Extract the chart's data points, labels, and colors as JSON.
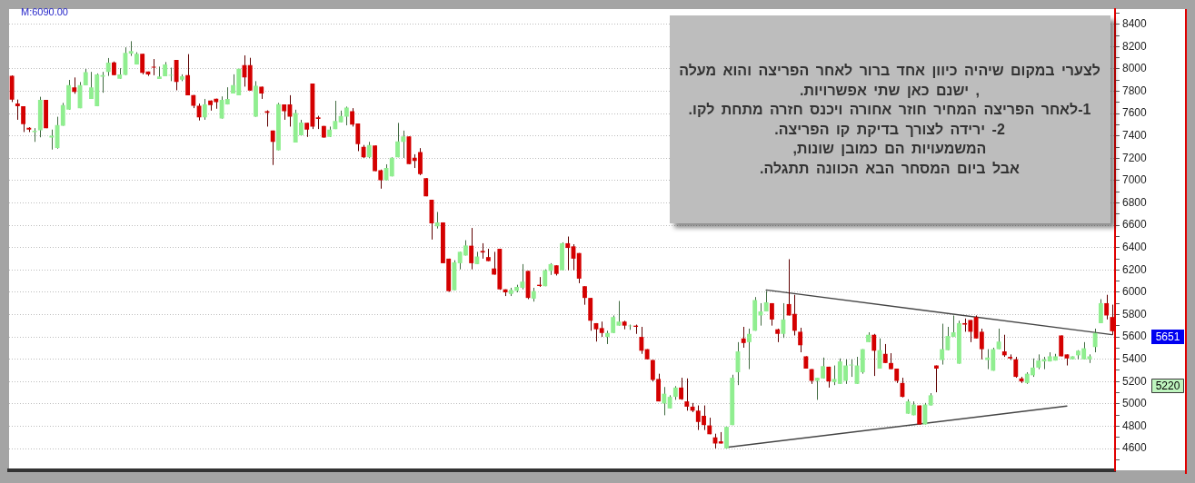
{
  "chart_data": {
    "type": "candlestick",
    "categories": [
      null,
      null,
      null,
      null,
      null,
      null,
      null,
      null,
      null,
      null,
      null,
      null,
      null,
      null,
      null,
      null,
      null,
      null,
      null,
      null,
      null,
      null,
      null,
      null,
      null,
      null,
      null,
      null,
      null,
      null,
      null,
      null,
      null,
      null,
      null,
      null,
      null,
      null,
      null,
      null,
      null,
      null,
      null,
      null,
      null,
      null,
      null,
      null,
      null,
      null,
      null,
      null,
      null,
      null,
      null,
      null,
      null,
      null,
      null,
      null,
      null,
      null,
      null,
      null,
      null,
      null,
      null,
      null,
      null,
      null,
      null,
      null,
      null,
      null,
      null,
      null,
      null,
      null,
      null,
      null,
      null,
      null,
      null,
      null,
      null,
      null,
      null,
      null,
      null,
      null,
      null,
      null,
      null,
      null,
      null,
      null,
      null,
      null,
      null,
      null,
      null,
      null,
      null,
      null,
      null,
      null,
      null,
      null,
      null,
      null,
      null,
      null,
      null,
      null,
      null,
      null,
      null,
      null,
      null,
      null,
      null,
      null,
      null,
      null,
      null,
      null,
      null,
      null,
      null,
      null,
      null,
      null,
      null,
      null,
      null,
      null,
      null,
      null,
      null,
      null,
      null,
      null,
      null,
      null,
      null,
      null,
      null,
      null,
      null,
      null,
      null,
      null,
      null,
      null,
      null,
      null,
      null,
      null,
      null,
      null,
      null,
      null,
      null,
      null,
      null,
      null,
      null,
      null,
      null,
      null,
      null,
      null,
      null,
      null,
      null,
      null,
      null,
      null,
      null,
      null,
      null,
      null,
      null,
      null,
      null,
      null,
      null,
      null,
      null,
      null,
      null,
      null,
      null,
      null,
      null
    ],
    "ohlc": [
      [
        7938,
        7943,
        7704,
        7726
      ],
      [
        7690,
        7726,
        7545,
        7666
      ],
      [
        7666,
        7666,
        7435,
        7506
      ],
      [
        7473,
        7478,
        7435,
        7457
      ],
      [
        7435,
        7470,
        7347,
        7446
      ],
      [
        7451,
        7751,
        7388,
        7723
      ],
      [
        7723,
        7723,
        7470,
        7470
      ],
      [
        7385,
        7457,
        7278,
        7402
      ],
      [
        7292,
        7572,
        7286,
        7498
      ],
      [
        7492,
        7696,
        7492,
        7677
      ],
      [
        7635,
        7902,
        7635,
        7855
      ],
      [
        7836,
        7924,
        7778,
        7795
      ],
      [
        7649,
        7883,
        7649,
        7855
      ],
      [
        7853,
        8001,
        7853,
        7971
      ],
      [
        7732,
        7974,
        7732,
        7836
      ],
      [
        7666,
        7960,
        7666,
        7952
      ],
      [
        7930,
        7974,
        7787,
        7944
      ],
      [
        7974,
        8098,
        7938,
        8056
      ],
      [
        8059,
        8067,
        7944,
        7944
      ],
      [
        7913,
        8007,
        7913,
        7952
      ],
      [
        7946,
        8194,
        7946,
        8144
      ],
      [
        8139,
        8249,
        8117,
        8161
      ],
      [
        8040,
        8150,
        8040,
        8136
      ],
      [
        8136,
        8136,
        7952,
        7966
      ],
      [
        7977,
        7977,
        7938,
        7952
      ],
      [
        8021,
        8089,
        7944,
        8012
      ],
      [
        7911,
        8021,
        7911,
        7933
      ],
      [
        7935,
        8062,
        7935,
        8040
      ],
      [
        7941,
        8012,
        7891,
        7946
      ],
      [
        8081,
        8081,
        7809,
        7883
      ],
      [
        7905,
        7952,
        7891,
        7935
      ],
      [
        7944,
        8133,
        7765,
        7765
      ],
      [
        7767,
        7767,
        7649,
        7671
      ],
      [
        7671,
        7690,
        7539,
        7567
      ],
      [
        7567,
        7732,
        7545,
        7682
      ],
      [
        7718,
        7718,
        7627,
        7677
      ],
      [
        7734,
        7734,
        7644,
        7704
      ],
      [
        7556,
        7754,
        7556,
        7723
      ],
      [
        7682,
        7836,
        7682,
        7732
      ],
      [
        7781,
        7952,
        7781,
        7855
      ],
      [
        7765,
        8001,
        7765,
        8001
      ],
      [
        8034,
        8122,
        7842,
        7924
      ],
      [
        8034,
        8100,
        7806,
        7806
      ],
      [
        7572,
        7891,
        7572,
        7850
      ],
      [
        7842,
        7842,
        7732,
        7781
      ],
      [
        7622,
        7630,
        7484,
        7608
      ],
      [
        7448,
        7448,
        7140,
        7347
      ],
      [
        7272,
        7696,
        7272,
        7685
      ],
      [
        7682,
        7682,
        7545,
        7622
      ],
      [
        7682,
        7765,
        7484,
        7572
      ],
      [
        7341,
        7635,
        7341,
        7605
      ],
      [
        7407,
        7545,
        7407,
        7520
      ],
      [
        7517,
        7517,
        7391,
        7457
      ],
      [
        7869,
        7869,
        7462,
        7484
      ],
      [
        7567,
        7580,
        7462,
        7553
      ],
      [
        7490,
        7490,
        7385,
        7385
      ],
      [
        7391,
        7484,
        7391,
        7457
      ],
      [
        7462,
        7715,
        7462,
        7534
      ],
      [
        7523,
        7627,
        7523,
        7578
      ],
      [
        7572,
        7663,
        7495,
        7655
      ],
      [
        7622,
        7649,
        7484,
        7501
      ],
      [
        7512,
        7512,
        7264,
        7327
      ],
      [
        7303,
        7319,
        7203,
        7209
      ],
      [
        7209,
        7347,
        7203,
        7319
      ],
      [
        7314,
        7314,
        7085,
        7085
      ],
      [
        7093,
        7099,
        6928,
        7003
      ],
      [
        7003,
        7146,
        7003,
        7113
      ],
      [
        7038,
        7209,
        7038,
        7204
      ],
      [
        7209,
        7517,
        7209,
        7352
      ],
      [
        7347,
        7448,
        7203,
        7396
      ],
      [
        7396,
        7396,
        7148,
        7148
      ],
      [
        7204,
        7236,
        7113,
        7176
      ],
      [
        7256,
        7291,
        7049,
        7058
      ],
      [
        7022,
        7022,
        6860,
        6860
      ],
      [
        6829,
        6829,
        6472,
        6618
      ],
      [
        6590,
        6719,
        6571,
        6626
      ],
      [
        6626,
        6626,
        6260,
        6260
      ],
      [
        6301,
        6301,
        6004,
        6010
      ],
      [
        6018,
        6287,
        6018,
        6268
      ],
      [
        6260,
        6362,
        6205,
        6362
      ],
      [
        6329,
        6466,
        6329,
        6419
      ],
      [
        6417,
        6576,
        6205,
        6260
      ],
      [
        6252,
        6362,
        6252,
        6320
      ],
      [
        6370,
        6439,
        6301,
        6356
      ],
      [
        6315,
        6389,
        6279,
        6279
      ],
      [
        6213,
        6362,
        6158,
        6158
      ],
      [
        6389,
        6389,
        6021,
        6026
      ],
      [
        6026,
        6026,
        5966,
        5999
      ],
      [
        5985,
        6040,
        5966,
        6021
      ],
      [
        6012,
        6067,
        5999,
        6048
      ],
      [
        6040,
        6252,
        6026,
        6095
      ],
      [
        6191,
        6191,
        5938,
        5949
      ],
      [
        5943,
        6040,
        5916,
        6010
      ],
      [
        6067,
        6136,
        6048,
        6056
      ],
      [
        6054,
        6205,
        6054,
        6197
      ],
      [
        6191,
        6260,
        6155,
        6252
      ],
      [
        6241,
        6241,
        6150,
        6164
      ],
      [
        6197,
        6447,
        6197,
        6439
      ],
      [
        6439,
        6499,
        6197,
        6397
      ],
      [
        6411,
        6430,
        6197,
        6301
      ],
      [
        6351,
        6351,
        6081,
        6122
      ],
      [
        6054,
        6054,
        5888,
        5949
      ],
      [
        5949,
        5949,
        5655,
        5745
      ],
      [
        5723,
        5723,
        5558,
        5668
      ],
      [
        5679,
        5737,
        5600,
        5635
      ],
      [
        5600,
        5655,
        5536,
        5635
      ],
      [
        5635,
        5792,
        5635,
        5778
      ],
      [
        5701,
        5922,
        5701,
        5737
      ],
      [
        5737,
        5745,
        5668,
        5701
      ],
      [
        5696,
        5710,
        5663,
        5701
      ],
      [
        5701,
        5710,
        5627,
        5690
      ],
      [
        5600,
        5690,
        5448,
        5476
      ],
      [
        5490,
        5490,
        5399,
        5399
      ],
      [
        5393,
        5393,
        5201,
        5215
      ],
      [
        5223,
        5270,
        5022,
        5022
      ],
      [
        5003,
        5151,
        4898,
        5091
      ],
      [
        4959,
        5077,
        4959,
        5063
      ],
      [
        5063,
        5159,
        5036,
        5146
      ],
      [
        5146,
        5234,
        5036,
        5041
      ],
      [
        5022,
        5228,
        4939,
        4975
      ],
      [
        4975,
        5008,
        4926,
        4939
      ],
      [
        4939,
        4986,
        4766,
        4838
      ],
      [
        4893,
        4986,
        4766,
        4810
      ],
      [
        4807,
        4876,
        4728,
        4728
      ],
      [
        4700,
        4733,
        4601,
        4645
      ],
      [
        4664,
        4747,
        4645,
        4645
      ],
      [
        4601,
        4794,
        4601,
        4794
      ],
      [
        4810,
        5261,
        4810,
        5234
      ],
      [
        5283,
        5553,
        5168,
        5470
      ],
      [
        5586,
        5690,
        5503,
        5545
      ],
      [
        5553,
        5674,
        5311,
        5627
      ],
      [
        5655,
        5957,
        5655,
        5930
      ],
      [
        5792,
        5902,
        5701,
        5828
      ],
      [
        5828,
        6012,
        5828,
        5910
      ],
      [
        5902,
        5902,
        5701,
        5756
      ],
      [
        5668,
        5674,
        5553,
        5627
      ],
      [
        5627,
        5902,
        5591,
        5756
      ],
      [
        5894,
        6296,
        5792,
        5792
      ],
      [
        5806,
        5977,
        5613,
        5655
      ],
      [
        5646,
        5682,
        5462,
        5525
      ],
      [
        5426,
        5426,
        5316,
        5316
      ],
      [
        5311,
        5311,
        5179,
        5206
      ],
      [
        5206,
        5234,
        5036,
        5234
      ],
      [
        5228,
        5415,
        5228,
        5338
      ],
      [
        5333,
        5333,
        5146,
        5201
      ],
      [
        5195,
        5344,
        5168,
        5223
      ],
      [
        5179,
        5407,
        5179,
        5380
      ],
      [
        5206,
        5399,
        5179,
        5344
      ],
      [
        5344,
        5399,
        5242,
        5352
      ],
      [
        5179,
        5421,
        5179,
        5344
      ],
      [
        5283,
        5490,
        5270,
        5490
      ],
      [
        5553,
        5641,
        5553,
        5619
      ],
      [
        5619,
        5627,
        5250,
        5476
      ],
      [
        5316,
        5586,
        5316,
        5481
      ],
      [
        5448,
        5536,
        5366,
        5366
      ],
      [
        5366,
        5454,
        5311,
        5311
      ],
      [
        5316,
        5316,
        5187,
        5206
      ],
      [
        5187,
        5234,
        5058,
        5063
      ],
      [
        4912,
        5041,
        4912,
        5022
      ],
      [
        4898,
        5022,
        4898,
        4994
      ],
      [
        4986,
        4986,
        4816,
        4816
      ],
      [
        4816,
        5008,
        4816,
        4994
      ],
      [
        4986,
        5096,
        4986,
        5077
      ],
      [
        5344,
        5344,
        5104,
        5316
      ],
      [
        5393,
        5718,
        5352,
        5490
      ],
      [
        5481,
        5690,
        5481,
        5608
      ],
      [
        5600,
        5792,
        5600,
        5641
      ],
      [
        5360,
        5745,
        5360,
        5723
      ],
      [
        5723,
        5765,
        5646,
        5710
      ],
      [
        5751,
        5751,
        5553,
        5646
      ],
      [
        5778,
        5792,
        5586,
        5586
      ],
      [
        5646,
        5674,
        5399,
        5490
      ],
      [
        5393,
        5490,
        5311,
        5415
      ],
      [
        5297,
        5503,
        5297,
        5490
      ],
      [
        5490,
        5674,
        5490,
        5558
      ],
      [
        5470,
        5619,
        5421,
        5435
      ],
      [
        5421,
        5443,
        5393,
        5407
      ],
      [
        5399,
        5421,
        5234,
        5242
      ],
      [
        5228,
        5242,
        5187,
        5201
      ],
      [
        5187,
        5283,
        5179,
        5270
      ],
      [
        5256,
        5407,
        5242,
        5325
      ],
      [
        5325,
        5443,
        5311,
        5388
      ],
      [
        5380,
        5421,
        5311,
        5399
      ],
      [
        5380,
        5462,
        5380,
        5426
      ],
      [
        5388,
        5448,
        5388,
        5426
      ],
      [
        5613,
        5613,
        5426,
        5426
      ],
      [
        5443,
        5443,
        5344,
        5407
      ],
      [
        5399,
        5426,
        5399,
        5426
      ],
      [
        5435,
        5481,
        5399,
        5476
      ],
      [
        5399,
        5553,
        5399,
        5498
      ],
      [
        5399,
        5443,
        5366,
        5426
      ],
      [
        5509,
        5674,
        5462,
        5635
      ],
      [
        5723,
        5938,
        5723,
        5902
      ],
      [
        5902,
        5977,
        5756,
        5792
      ],
      [
        5778,
        5889,
        5619,
        5651
      ]
    ],
    "colors": [
      "#d40000",
      "#d40000",
      "#d40000",
      "#d40000",
      "#90ee90",
      "#90ee90",
      "#d40000",
      "#90ee90",
      "#90ee90",
      "#90ee90",
      "#90ee90",
      "#d40000",
      "#90ee90",
      "#90ee90",
      "#90ee90",
      "#90ee90",
      "#90ee90",
      "#90ee90",
      "#d40000",
      "#90ee90",
      "#90ee90",
      "#90ee90",
      "#90ee90",
      "#d40000",
      "#d40000",
      "#d40000",
      "#90ee90",
      "#90ee90",
      "#90ee90",
      "#d40000",
      "#90ee90",
      "#d40000",
      "#d40000",
      "#d40000",
      "#90ee90",
      "#d40000",
      "#d40000",
      "#90ee90",
      "#90ee90",
      "#90ee90",
      "#90ee90",
      "#d40000",
      "#d40000",
      "#90ee90",
      "#d40000",
      "#d40000",
      "#d40000",
      "#90ee90",
      "#d40000",
      "#d40000",
      "#90ee90",
      "#90ee90",
      "#d40000",
      "#d40000",
      "#d40000",
      "#d40000",
      "#90ee90",
      "#90ee90",
      "#90ee90",
      "#90ee90",
      "#d40000",
      "#d40000",
      "#d40000",
      "#90ee90",
      "#d40000",
      "#d40000",
      "#90ee90",
      "#90ee90",
      "#90ee90",
      "#90ee90",
      "#d40000",
      "#d40000",
      "#d40000",
      "#d40000",
      "#d40000",
      "#90ee90",
      "#d40000",
      "#d40000",
      "#90ee90",
      "#90ee90",
      "#90ee90",
      "#d40000",
      "#90ee90",
      "#d40000",
      "#d40000",
      "#d40000",
      "#d40000",
      "#d40000",
      "#90ee90",
      "#90ee90",
      "#90ee90",
      "#d40000",
      "#90ee90",
      "#d40000",
      "#90ee90",
      "#90ee90",
      "#d40000",
      "#90ee90",
      "#d40000",
      "#d40000",
      "#d40000",
      "#d40000",
      "#d40000",
      "#d40000",
      "#d40000",
      "#90ee90",
      "#90ee90",
      "#90ee90",
      "#d40000",
      "#90ee90",
      "#d40000",
      "#d40000",
      "#d40000",
      "#d40000",
      "#d40000",
      "#90ee90",
      "#90ee90",
      "#90ee90",
      "#d40000",
      "#d40000",
      "#d40000",
      "#d40000",
      "#d40000",
      "#d40000",
      "#d40000",
      "#d40000",
      "#90ee90",
      "#90ee90",
      "#90ee90",
      "#d40000",
      "#90ee90",
      "#90ee90",
      "#90ee90",
      "#90ee90",
      "#d40000",
      "#d40000",
      "#90ee90",
      "#d40000",
      "#d40000",
      "#d40000",
      "#d40000",
      "#d40000",
      "#90ee90",
      "#90ee90",
      "#d40000",
      "#90ee90",
      "#90ee90",
      "#90ee90",
      "#90ee90",
      "#90ee90",
      "#90ee90",
      "#90ee90",
      "#d40000",
      "#90ee90",
      "#d40000",
      "#d40000",
      "#d40000",
      "#d40000",
      "#90ee90",
      "#90ee90",
      "#d40000",
      "#90ee90",
      "#90ee90",
      "#d40000",
      "#90ee90",
      "#90ee90",
      "#90ee90",
      "#90ee90",
      "#d40000",
      "#d40000",
      "#d40000",
      "#d40000",
      "#90ee90",
      "#90ee90",
      "#90ee90",
      "#d40000",
      "#d40000",
      "#d40000",
      "#d40000",
      "#90ee90",
      "#90ee90",
      "#90ee90",
      "#90ee90",
      "#90ee90",
      "#90ee90",
      "#d40000",
      "#d40000",
      "#90ee90",
      "#90ee90",
      "#90ee90",
      "#90ee90",
      "#90ee90",
      "#90ee90",
      "#d40000",
      "#d40000"
    ],
    "series": [
      {
        "type": "line",
        "color": "#454545",
        "values": [
          null,
          null,
          null,
          null,
          null,
          null,
          null,
          null,
          null,
          null,
          null,
          null,
          null,
          null,
          null,
          null,
          null,
          null,
          null,
          null,
          null,
          null,
          null,
          null,
          null,
          null,
          null,
          null,
          null,
          null,
          null,
          null,
          null,
          null,
          null,
          null,
          null,
          null,
          null,
          null,
          null,
          null,
          null,
          null,
          null,
          null,
          null,
          null,
          null,
          null,
          null,
          null,
          null,
          null,
          null,
          null,
          null,
          null,
          null,
          null,
          null,
          null,
          null,
          null,
          null,
          null,
          null,
          null,
          null,
          null,
          null,
          null,
          null,
          null,
          null,
          null,
          null,
          null,
          null,
          null,
          null,
          null,
          null,
          null,
          null,
          null,
          null,
          null,
          null,
          null,
          null,
          null,
          null,
          null,
          null,
          null,
          null,
          null,
          null,
          null,
          null,
          null,
          null,
          null,
          null,
          null,
          null,
          null,
          null,
          null,
          null,
          null,
          null,
          null,
          null,
          null,
          null,
          null,
          null,
          null,
          null,
          null,
          null,
          null,
          null,
          null,
          4610,
          null,
          null,
          null,
          null,
          null,
          null,
          null,
          null,
          null,
          null,
          null,
          null,
          null,
          null,
          null,
          null,
          null,
          null,
          null,
          null,
          null,
          null,
          null,
          null,
          null,
          null,
          null,
          null,
          null,
          null,
          null,
          null,
          null,
          null,
          null,
          null,
          null,
          null,
          null,
          null,
          null,
          null,
          null,
          null,
          null,
          null,
          null,
          null,
          null,
          null,
          null,
          null,
          null,
          null,
          null,
          null,
          null,
          null,
          null,
          4980,
          null,
          null,
          null,
          null,
          null,
          null,
          null,
          null
        ]
      },
      {
        "type": "line",
        "color": "#454545",
        "values": [
          null,
          null,
          null,
          null,
          null,
          null,
          null,
          null,
          null,
          null,
          null,
          null,
          null,
          null,
          null,
          null,
          null,
          null,
          null,
          null,
          null,
          null,
          null,
          null,
          null,
          null,
          null,
          null,
          null,
          null,
          null,
          null,
          null,
          null,
          null,
          null,
          null,
          null,
          null,
          null,
          null,
          null,
          null,
          null,
          null,
          null,
          null,
          null,
          null,
          null,
          null,
          null,
          null,
          null,
          null,
          null,
          null,
          null,
          null,
          null,
          null,
          null,
          null,
          null,
          null,
          null,
          null,
          null,
          null,
          null,
          null,
          null,
          null,
          null,
          null,
          null,
          null,
          null,
          null,
          null,
          null,
          null,
          null,
          null,
          null,
          null,
          null,
          null,
          null,
          null,
          null,
          null,
          null,
          null,
          null,
          null,
          null,
          null,
          null,
          null,
          null,
          null,
          null,
          null,
          null,
          null,
          null,
          null,
          null,
          null,
          null,
          null,
          null,
          null,
          null,
          null,
          null,
          null,
          null,
          null,
          null,
          null,
          null,
          null,
          null,
          null,
          null,
          null,
          null,
          null,
          null,
          null,
          null,
          6020,
          null,
          null,
          null,
          null,
          null,
          null,
          null,
          null,
          null,
          null,
          null,
          null,
          null,
          null,
          null,
          null,
          null,
          null,
          null,
          null,
          null,
          null,
          null,
          null,
          null,
          null,
          null,
          null,
          null,
          null,
          null,
          null,
          null,
          null,
          null,
          null,
          null,
          null,
          null,
          null,
          null,
          null,
          null,
          null,
          null,
          null,
          null,
          null,
          null,
          null,
          null,
          null,
          null,
          null,
          null,
          null,
          null,
          null,
          null,
          null,
          5620
        ]
      }
    ],
    "ylim": [
      4405,
      8535
    ],
    "yticks": [
      {
        "value": 4500,
        "label": null
      },
      4600,
      {
        "value": 4700,
        "label": null
      },
      4800,
      {
        "value": 4900,
        "label": null
      },
      5000,
      {
        "value": 5100,
        "label": null
      },
      5200,
      {
        "value": 5300,
        "label": null
      },
      5400,
      {
        "value": 5500,
        "label": null
      },
      5600,
      {
        "value": 5700,
        "label": null
      },
      5800,
      {
        "value": 5900,
        "label": null
      },
      6000,
      {
        "value": 6100,
        "label": null
      },
      6200,
      {
        "value": 6300,
        "label": null
      },
      6400,
      {
        "value": 6500,
        "label": null
      },
      6600,
      {
        "value": 6700,
        "label": null
      },
      6800,
      {
        "value": 6900,
        "label": null
      },
      7000,
      {
        "value": 7100,
        "label": null
      },
      7200,
      {
        "value": 7300,
        "label": null
      },
      7400,
      {
        "value": 7500,
        "label": null
      },
      7600,
      {
        "value": 7700,
        "label": null
      },
      7800,
      {
        "value": 7900,
        "label": null
      },
      8000,
      {
        "value": 8100,
        "label": null
      },
      8200,
      {
        "value": 8300,
        "label": null
      },
      8400,
      {
        "value": 8500,
        "label": null
      }
    ],
    "grid": "y",
    "tick_labels": "y",
    "annotations": [
      "M:6090.00",
      "לצערי במקום שיהיה כיוון אחד ברור לאחר הפריצה והוא מעלה\n, ישנם כאן שתי אפשרויות.\n1-לאחר הפריצה המחיר חוזר אחורה ויכנס חזרה מתחת לקו.\n2- ירידה לצורך בדיקת קו הפריצה.\nהמשמעויות הם כמובן שונות,\nאבל ביום המסחר הבא הכוונה תתגלה.",
      "5651",
      "5220"
    ]
  }
}
